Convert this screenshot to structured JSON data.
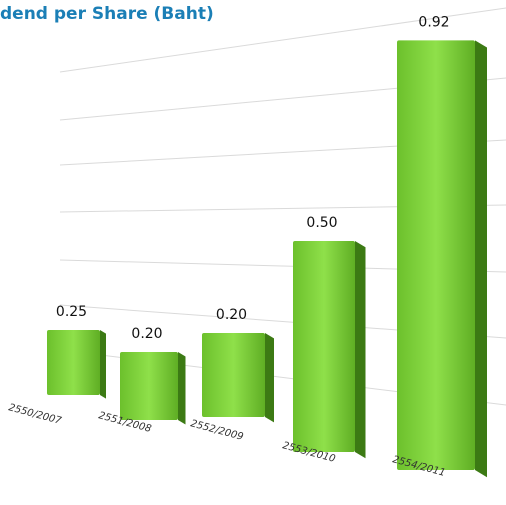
{
  "chart_data": {
    "type": "bar",
    "title": "dend per Share (Baht)",
    "categories": [
      "2550/2007",
      "2551/2008",
      "2552/2009",
      "2553/2010",
      "2554/2011"
    ],
    "values": [
      0.25,
      0.2,
      0.2,
      0.5,
      0.92
    ],
    "value_labels": [
      "0.25",
      "0.20",
      "0.20",
      "0.50",
      "0.92"
    ],
    "color": "#7ccf3a"
  }
}
